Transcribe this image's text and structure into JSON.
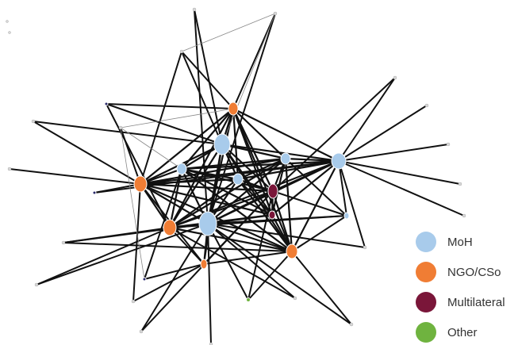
{
  "legend": {
    "items": [
      {
        "label": "MoH",
        "color": "#a8cbeb",
        "icon": "light-blue-circle"
      },
      {
        "label": "NGO/CSo",
        "color": "#f07d34",
        "icon": "orange-circle"
      },
      {
        "label": "Multilateral",
        "color": "#7a1639",
        "icon": "maroon-circle"
      },
      {
        "label": "Other",
        "color": "#6fb33f",
        "icon": "green-circle"
      }
    ]
  },
  "network": {
    "edge_color": "#111111",
    "faint_edge_color": "#888888"
  }
}
